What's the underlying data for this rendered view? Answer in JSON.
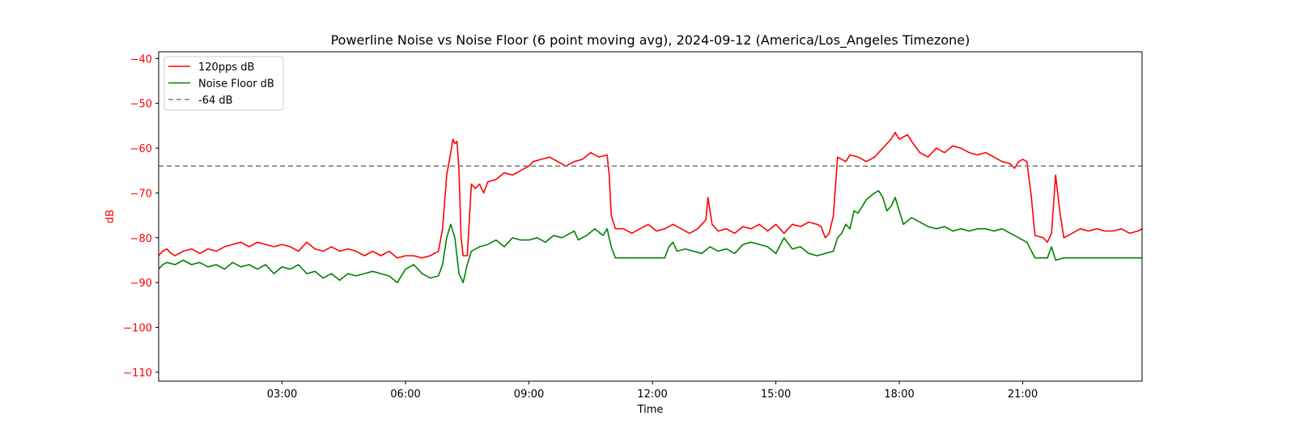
{
  "chart_data": {
    "type": "line",
    "title": "Powerline Noise vs Noise Floor (6 point moving avg), 2024-09-12 (America/Los_Angeles Timezone)",
    "xlabel": "Time",
    "ylabel": "dB",
    "x_unit": "hours since 00:00 on 2024-09-12",
    "xlim": [
      0.0,
      23.9
    ],
    "ylim": [
      -112.0,
      -38.5
    ],
    "x_ticks": [
      3,
      6,
      9,
      12,
      15,
      18,
      21
    ],
    "x_tick_labels": [
      "03:00",
      "06:00",
      "09:00",
      "12:00",
      "15:00",
      "18:00",
      "21:00"
    ],
    "y_ticks": [
      -40,
      -50,
      -60,
      -70,
      -80,
      -90,
      -100,
      -110
    ],
    "y_tick_labels": [
      "−40",
      "−50",
      "−60",
      "−70",
      "−80",
      "−90",
      "−100",
      "−110"
    ],
    "grid": false,
    "legend_position": "upper-left",
    "colors": {
      "ylabel_and_yticks": "#ff0000",
      "axes": "#000000"
    },
    "series": [
      {
        "name": "120pps dB",
        "color": "#ff0000",
        "style": "solid",
        "points": [
          [
            0.0,
            -84.0
          ],
          [
            0.1,
            -83.0
          ],
          [
            0.2,
            -82.5
          ],
          [
            0.3,
            -83.5
          ],
          [
            0.4,
            -84.0
          ],
          [
            0.6,
            -83.0
          ],
          [
            0.8,
            -82.5
          ],
          [
            1.0,
            -83.5
          ],
          [
            1.2,
            -82.5
          ],
          [
            1.4,
            -83.0
          ],
          [
            1.6,
            -82.0
          ],
          [
            1.8,
            -81.5
          ],
          [
            2.0,
            -81.0
          ],
          [
            2.2,
            -82.0
          ],
          [
            2.4,
            -81.0
          ],
          [
            2.6,
            -81.5
          ],
          [
            2.8,
            -82.0
          ],
          [
            3.0,
            -81.5
          ],
          [
            3.2,
            -82.0
          ],
          [
            3.4,
            -83.0
          ],
          [
            3.6,
            -81.0
          ],
          [
            3.8,
            -82.5
          ],
          [
            4.0,
            -83.0
          ],
          [
            4.2,
            -82.0
          ],
          [
            4.4,
            -83.0
          ],
          [
            4.6,
            -82.5
          ],
          [
            4.8,
            -83.0
          ],
          [
            5.0,
            -84.0
          ],
          [
            5.2,
            -83.0
          ],
          [
            5.4,
            -84.0
          ],
          [
            5.6,
            -83.0
          ],
          [
            5.8,
            -84.5
          ],
          [
            6.0,
            -84.0
          ],
          [
            6.2,
            -84.0
          ],
          [
            6.4,
            -84.5
          ],
          [
            6.6,
            -84.0
          ],
          [
            6.8,
            -83.0
          ],
          [
            6.9,
            -78.0
          ],
          [
            7.0,
            -66.0
          ],
          [
            7.1,
            -61.0
          ],
          [
            7.15,
            -58.0
          ],
          [
            7.2,
            -59.0
          ],
          [
            7.25,
            -58.5
          ],
          [
            7.3,
            -65.0
          ],
          [
            7.35,
            -80.0
          ],
          [
            7.4,
            -84.0
          ],
          [
            7.5,
            -84.0
          ],
          [
            7.6,
            -68.0
          ],
          [
            7.7,
            -69.0
          ],
          [
            7.8,
            -68.0
          ],
          [
            7.9,
            -70.0
          ],
          [
            8.0,
            -67.5
          ],
          [
            8.2,
            -67.0
          ],
          [
            8.4,
            -65.5
          ],
          [
            8.6,
            -66.0
          ],
          [
            8.8,
            -65.0
          ],
          [
            9.0,
            -64.0
          ],
          [
            9.1,
            -63.0
          ],
          [
            9.3,
            -62.5
          ],
          [
            9.5,
            -62.0
          ],
          [
            9.7,
            -63.0
          ],
          [
            9.9,
            -64.0
          ],
          [
            10.1,
            -63.0
          ],
          [
            10.3,
            -62.5
          ],
          [
            10.5,
            -61.0
          ],
          [
            10.7,
            -62.0
          ],
          [
            10.9,
            -61.5
          ],
          [
            10.95,
            -66.0
          ],
          [
            11.0,
            -75.0
          ],
          [
            11.1,
            -78.0
          ],
          [
            11.3,
            -78.0
          ],
          [
            11.5,
            -79.0
          ],
          [
            11.7,
            -78.0
          ],
          [
            11.9,
            -77.0
          ],
          [
            12.1,
            -78.5
          ],
          [
            12.3,
            -78.0
          ],
          [
            12.5,
            -77.0
          ],
          [
            12.7,
            -78.0
          ],
          [
            12.9,
            -79.0
          ],
          [
            13.1,
            -78.0
          ],
          [
            13.3,
            -76.0
          ],
          [
            13.35,
            -71.0
          ],
          [
            13.45,
            -77.0
          ],
          [
            13.6,
            -78.5
          ],
          [
            13.8,
            -78.0
          ],
          [
            14.0,
            -79.0
          ],
          [
            14.2,
            -77.5
          ],
          [
            14.4,
            -78.0
          ],
          [
            14.6,
            -77.0
          ],
          [
            14.8,
            -78.5
          ],
          [
            15.0,
            -77.0
          ],
          [
            15.2,
            -79.0
          ],
          [
            15.4,
            -77.0
          ],
          [
            15.6,
            -77.5
          ],
          [
            15.8,
            -76.5
          ],
          [
            16.0,
            -77.0
          ],
          [
            16.1,
            -77.5
          ],
          [
            16.2,
            -80.0
          ],
          [
            16.3,
            -79.0
          ],
          [
            16.4,
            -75.0
          ],
          [
            16.5,
            -62.0
          ],
          [
            16.6,
            -62.5
          ],
          [
            16.7,
            -63.0
          ],
          [
            16.8,
            -61.5
          ],
          [
            17.0,
            -62.0
          ],
          [
            17.2,
            -63.0
          ],
          [
            17.4,
            -62.0
          ],
          [
            17.6,
            -60.0
          ],
          [
            17.8,
            -58.0
          ],
          [
            17.9,
            -56.5
          ],
          [
            18.0,
            -58.0
          ],
          [
            18.2,
            -57.0
          ],
          [
            18.3,
            -58.5
          ],
          [
            18.5,
            -61.0
          ],
          [
            18.7,
            -62.0
          ],
          [
            18.9,
            -60.0
          ],
          [
            19.1,
            -61.0
          ],
          [
            19.3,
            -59.5
          ],
          [
            19.5,
            -60.0
          ],
          [
            19.7,
            -61.0
          ],
          [
            19.9,
            -61.5
          ],
          [
            20.1,
            -61.0
          ],
          [
            20.3,
            -62.0
          ],
          [
            20.5,
            -63.0
          ],
          [
            20.7,
            -63.5
          ],
          [
            20.8,
            -64.5
          ],
          [
            20.9,
            -63.0
          ],
          [
            21.0,
            -62.5
          ],
          [
            21.1,
            -63.0
          ],
          [
            21.2,
            -70.0
          ],
          [
            21.3,
            -79.5
          ],
          [
            21.5,
            -80.0
          ],
          [
            21.6,
            -81.0
          ],
          [
            21.7,
            -79.0
          ],
          [
            21.8,
            -66.0
          ],
          [
            21.9,
            -74.0
          ],
          [
            22.0,
            -80.0
          ],
          [
            22.2,
            -79.0
          ],
          [
            22.4,
            -78.0
          ],
          [
            22.6,
            -78.5
          ],
          [
            22.8,
            -78.0
          ],
          [
            23.0,
            -78.5
          ],
          [
            23.2,
            -78.5
          ],
          [
            23.4,
            -78.0
          ],
          [
            23.6,
            -79.0
          ],
          [
            23.8,
            -78.5
          ],
          [
            23.9,
            -78.0
          ]
        ]
      },
      {
        "name": "Noise Floor dB",
        "color": "#008000",
        "style": "solid",
        "points": [
          [
            0.0,
            -87.0
          ],
          [
            0.1,
            -86.0
          ],
          [
            0.2,
            -85.5
          ],
          [
            0.4,
            -86.0
          ],
          [
            0.6,
            -85.0
          ],
          [
            0.8,
            -86.0
          ],
          [
            1.0,
            -85.5
          ],
          [
            1.2,
            -86.5
          ],
          [
            1.4,
            -86.0
          ],
          [
            1.6,
            -87.0
          ],
          [
            1.8,
            -85.5
          ],
          [
            2.0,
            -86.5
          ],
          [
            2.2,
            -86.0
          ],
          [
            2.4,
            -87.0
          ],
          [
            2.6,
            -86.0
          ],
          [
            2.8,
            -88.0
          ],
          [
            3.0,
            -86.5
          ],
          [
            3.2,
            -87.0
          ],
          [
            3.4,
            -86.0
          ],
          [
            3.6,
            -88.0
          ],
          [
            3.8,
            -87.5
          ],
          [
            4.0,
            -89.0
          ],
          [
            4.2,
            -88.0
          ],
          [
            4.4,
            -89.5
          ],
          [
            4.6,
            -88.0
          ],
          [
            4.8,
            -88.5
          ],
          [
            5.0,
            -88.0
          ],
          [
            5.2,
            -87.5
          ],
          [
            5.4,
            -88.0
          ],
          [
            5.6,
            -88.5
          ],
          [
            5.8,
            -90.0
          ],
          [
            6.0,
            -87.0
          ],
          [
            6.2,
            -86.0
          ],
          [
            6.4,
            -88.0
          ],
          [
            6.6,
            -89.0
          ],
          [
            6.8,
            -88.5
          ],
          [
            6.9,
            -86.0
          ],
          [
            7.0,
            -80.0
          ],
          [
            7.1,
            -77.0
          ],
          [
            7.2,
            -80.0
          ],
          [
            7.3,
            -88.0
          ],
          [
            7.4,
            -90.0
          ],
          [
            7.5,
            -86.0
          ],
          [
            7.6,
            -83.0
          ],
          [
            7.8,
            -82.0
          ],
          [
            8.0,
            -81.5
          ],
          [
            8.2,
            -80.5
          ],
          [
            8.4,
            -82.0
          ],
          [
            8.6,
            -80.0
          ],
          [
            8.8,
            -80.5
          ],
          [
            9.0,
            -80.5
          ],
          [
            9.2,
            -80.0
          ],
          [
            9.4,
            -81.0
          ],
          [
            9.6,
            -79.5
          ],
          [
            9.8,
            -80.0
          ],
          [
            10.0,
            -79.0
          ],
          [
            10.1,
            -78.5
          ],
          [
            10.2,
            -80.5
          ],
          [
            10.4,
            -79.5
          ],
          [
            10.6,
            -78.0
          ],
          [
            10.8,
            -79.5
          ],
          [
            10.9,
            -78.0
          ],
          [
            11.0,
            -82.0
          ],
          [
            11.1,
            -84.5
          ],
          [
            11.5,
            -84.5
          ],
          [
            12.0,
            -84.5
          ],
          [
            12.3,
            -84.5
          ],
          [
            12.4,
            -82.0
          ],
          [
            12.5,
            -81.0
          ],
          [
            12.6,
            -83.0
          ],
          [
            12.8,
            -82.5
          ],
          [
            13.0,
            -83.0
          ],
          [
            13.2,
            -83.5
          ],
          [
            13.4,
            -82.0
          ],
          [
            13.6,
            -83.0
          ],
          [
            13.8,
            -82.5
          ],
          [
            14.0,
            -83.5
          ],
          [
            14.2,
            -81.5
          ],
          [
            14.4,
            -81.0
          ],
          [
            14.6,
            -81.5
          ],
          [
            14.8,
            -82.0
          ],
          [
            15.0,
            -83.5
          ],
          [
            15.2,
            -80.0
          ],
          [
            15.4,
            -82.5
          ],
          [
            15.6,
            -82.0
          ],
          [
            15.8,
            -83.5
          ],
          [
            16.0,
            -84.0
          ],
          [
            16.2,
            -83.5
          ],
          [
            16.4,
            -83.0
          ],
          [
            16.5,
            -80.0
          ],
          [
            16.6,
            -79.0
          ],
          [
            16.7,
            -77.0
          ],
          [
            16.8,
            -78.0
          ],
          [
            16.9,
            -74.0
          ],
          [
            17.0,
            -74.5
          ],
          [
            17.1,
            -73.0
          ],
          [
            17.2,
            -71.5
          ],
          [
            17.4,
            -70.0
          ],
          [
            17.5,
            -69.5
          ],
          [
            17.6,
            -71.0
          ],
          [
            17.7,
            -74.0
          ],
          [
            17.8,
            -73.0
          ],
          [
            17.9,
            -71.0
          ],
          [
            18.0,
            -74.0
          ],
          [
            18.1,
            -77.0
          ],
          [
            18.3,
            -75.5
          ],
          [
            18.5,
            -76.5
          ],
          [
            18.7,
            -77.5
          ],
          [
            18.9,
            -78.0
          ],
          [
            19.1,
            -77.5
          ],
          [
            19.3,
            -78.5
          ],
          [
            19.5,
            -78.0
          ],
          [
            19.7,
            -78.5
          ],
          [
            19.9,
            -78.0
          ],
          [
            20.1,
            -78.0
          ],
          [
            20.3,
            -78.5
          ],
          [
            20.5,
            -78.0
          ],
          [
            20.7,
            -79.0
          ],
          [
            20.9,
            -80.0
          ],
          [
            21.1,
            -81.0
          ],
          [
            21.3,
            -84.5
          ],
          [
            21.6,
            -84.5
          ],
          [
            21.7,
            -82.0
          ],
          [
            21.8,
            -85.0
          ],
          [
            22.0,
            -84.5
          ],
          [
            22.5,
            -84.5
          ],
          [
            23.0,
            -84.5
          ],
          [
            23.5,
            -84.5
          ],
          [
            23.9,
            -84.5
          ]
        ]
      },
      {
        "name": "-64 dB",
        "color": "#808080",
        "style": "dashed",
        "points": [
          [
            0.0,
            -64.0
          ],
          [
            23.9,
            -64.0
          ]
        ]
      }
    ]
  }
}
